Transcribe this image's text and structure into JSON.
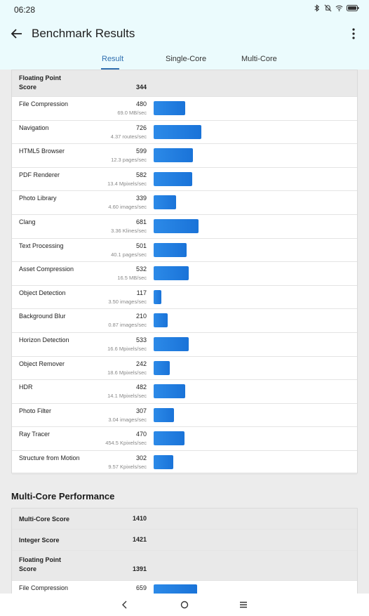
{
  "status": {
    "time": "06:28"
  },
  "app_bar": {
    "title": "Benchmark Results"
  },
  "tabs": [
    {
      "label": "Result",
      "active": true
    },
    {
      "label": "Single-Core",
      "active": false
    },
    {
      "label": "Multi-Core",
      "active": false
    }
  ],
  "single_core": {
    "fp": {
      "label": "Floating Point Score",
      "score": "344"
    },
    "tests": [
      {
        "name": "File Compression",
        "score": 480,
        "sub": "69.0 MB/sec"
      },
      {
        "name": "Navigation",
        "score": 726,
        "sub": "4.37 routes/sec"
      },
      {
        "name": "HTML5 Browser",
        "score": 599,
        "sub": "12.3 pages/sec"
      },
      {
        "name": "PDF Renderer",
        "score": 582,
        "sub": "13.4 Mpixels/sec"
      },
      {
        "name": "Photo Library",
        "score": 339,
        "sub": "4.60 images/sec"
      },
      {
        "name": "Clang",
        "score": 681,
        "sub": "3.36 Klines/sec"
      },
      {
        "name": "Text Processing",
        "score": 501,
        "sub": "40.1 pages/sec"
      },
      {
        "name": "Asset Compression",
        "score": 532,
        "sub": "16.5 MB/sec"
      },
      {
        "name": "Object Detection",
        "score": 117,
        "sub": "3.50 images/sec"
      },
      {
        "name": "Background Blur",
        "score": 210,
        "sub": "0.87 images/sec"
      },
      {
        "name": "Horizon Detection",
        "score": 533,
        "sub": "16.6 Mpixels/sec"
      },
      {
        "name": "Object Remover",
        "score": 242,
        "sub": "18.6 Mpixels/sec"
      },
      {
        "name": "HDR",
        "score": 482,
        "sub": "14.1 Mpixels/sec"
      },
      {
        "name": "Photo Filter",
        "score": 307,
        "sub": "3.04 images/sec"
      },
      {
        "name": "Ray Tracer",
        "score": 470,
        "sub": "454.5 Kpixels/sec"
      },
      {
        "name": "Structure from Motion",
        "score": 302,
        "sub": "9.57 Kpixels/sec"
      }
    ]
  },
  "multi_core": {
    "section_title": "Multi-Core Performance",
    "multi_core_score": {
      "label": "Multi-Core Score",
      "score": "1410"
    },
    "integer_score": {
      "label": "Integer Score",
      "score": "1421"
    },
    "fp": {
      "label": "Floating Point Score",
      "score": "1391"
    },
    "tests": [
      {
        "name": "File Compression",
        "score": 659
      }
    ]
  },
  "colors": {
    "accent": "#2f6fb0",
    "bar": "#1f7ae0",
    "header_bg": "#ebfbfd"
  },
  "icons": {
    "back": "arrow-left-icon",
    "menu": "more-vert-icon",
    "nav_back": "nav-back-icon",
    "nav_home": "nav-home-icon",
    "nav_recents": "nav-recents-icon"
  }
}
